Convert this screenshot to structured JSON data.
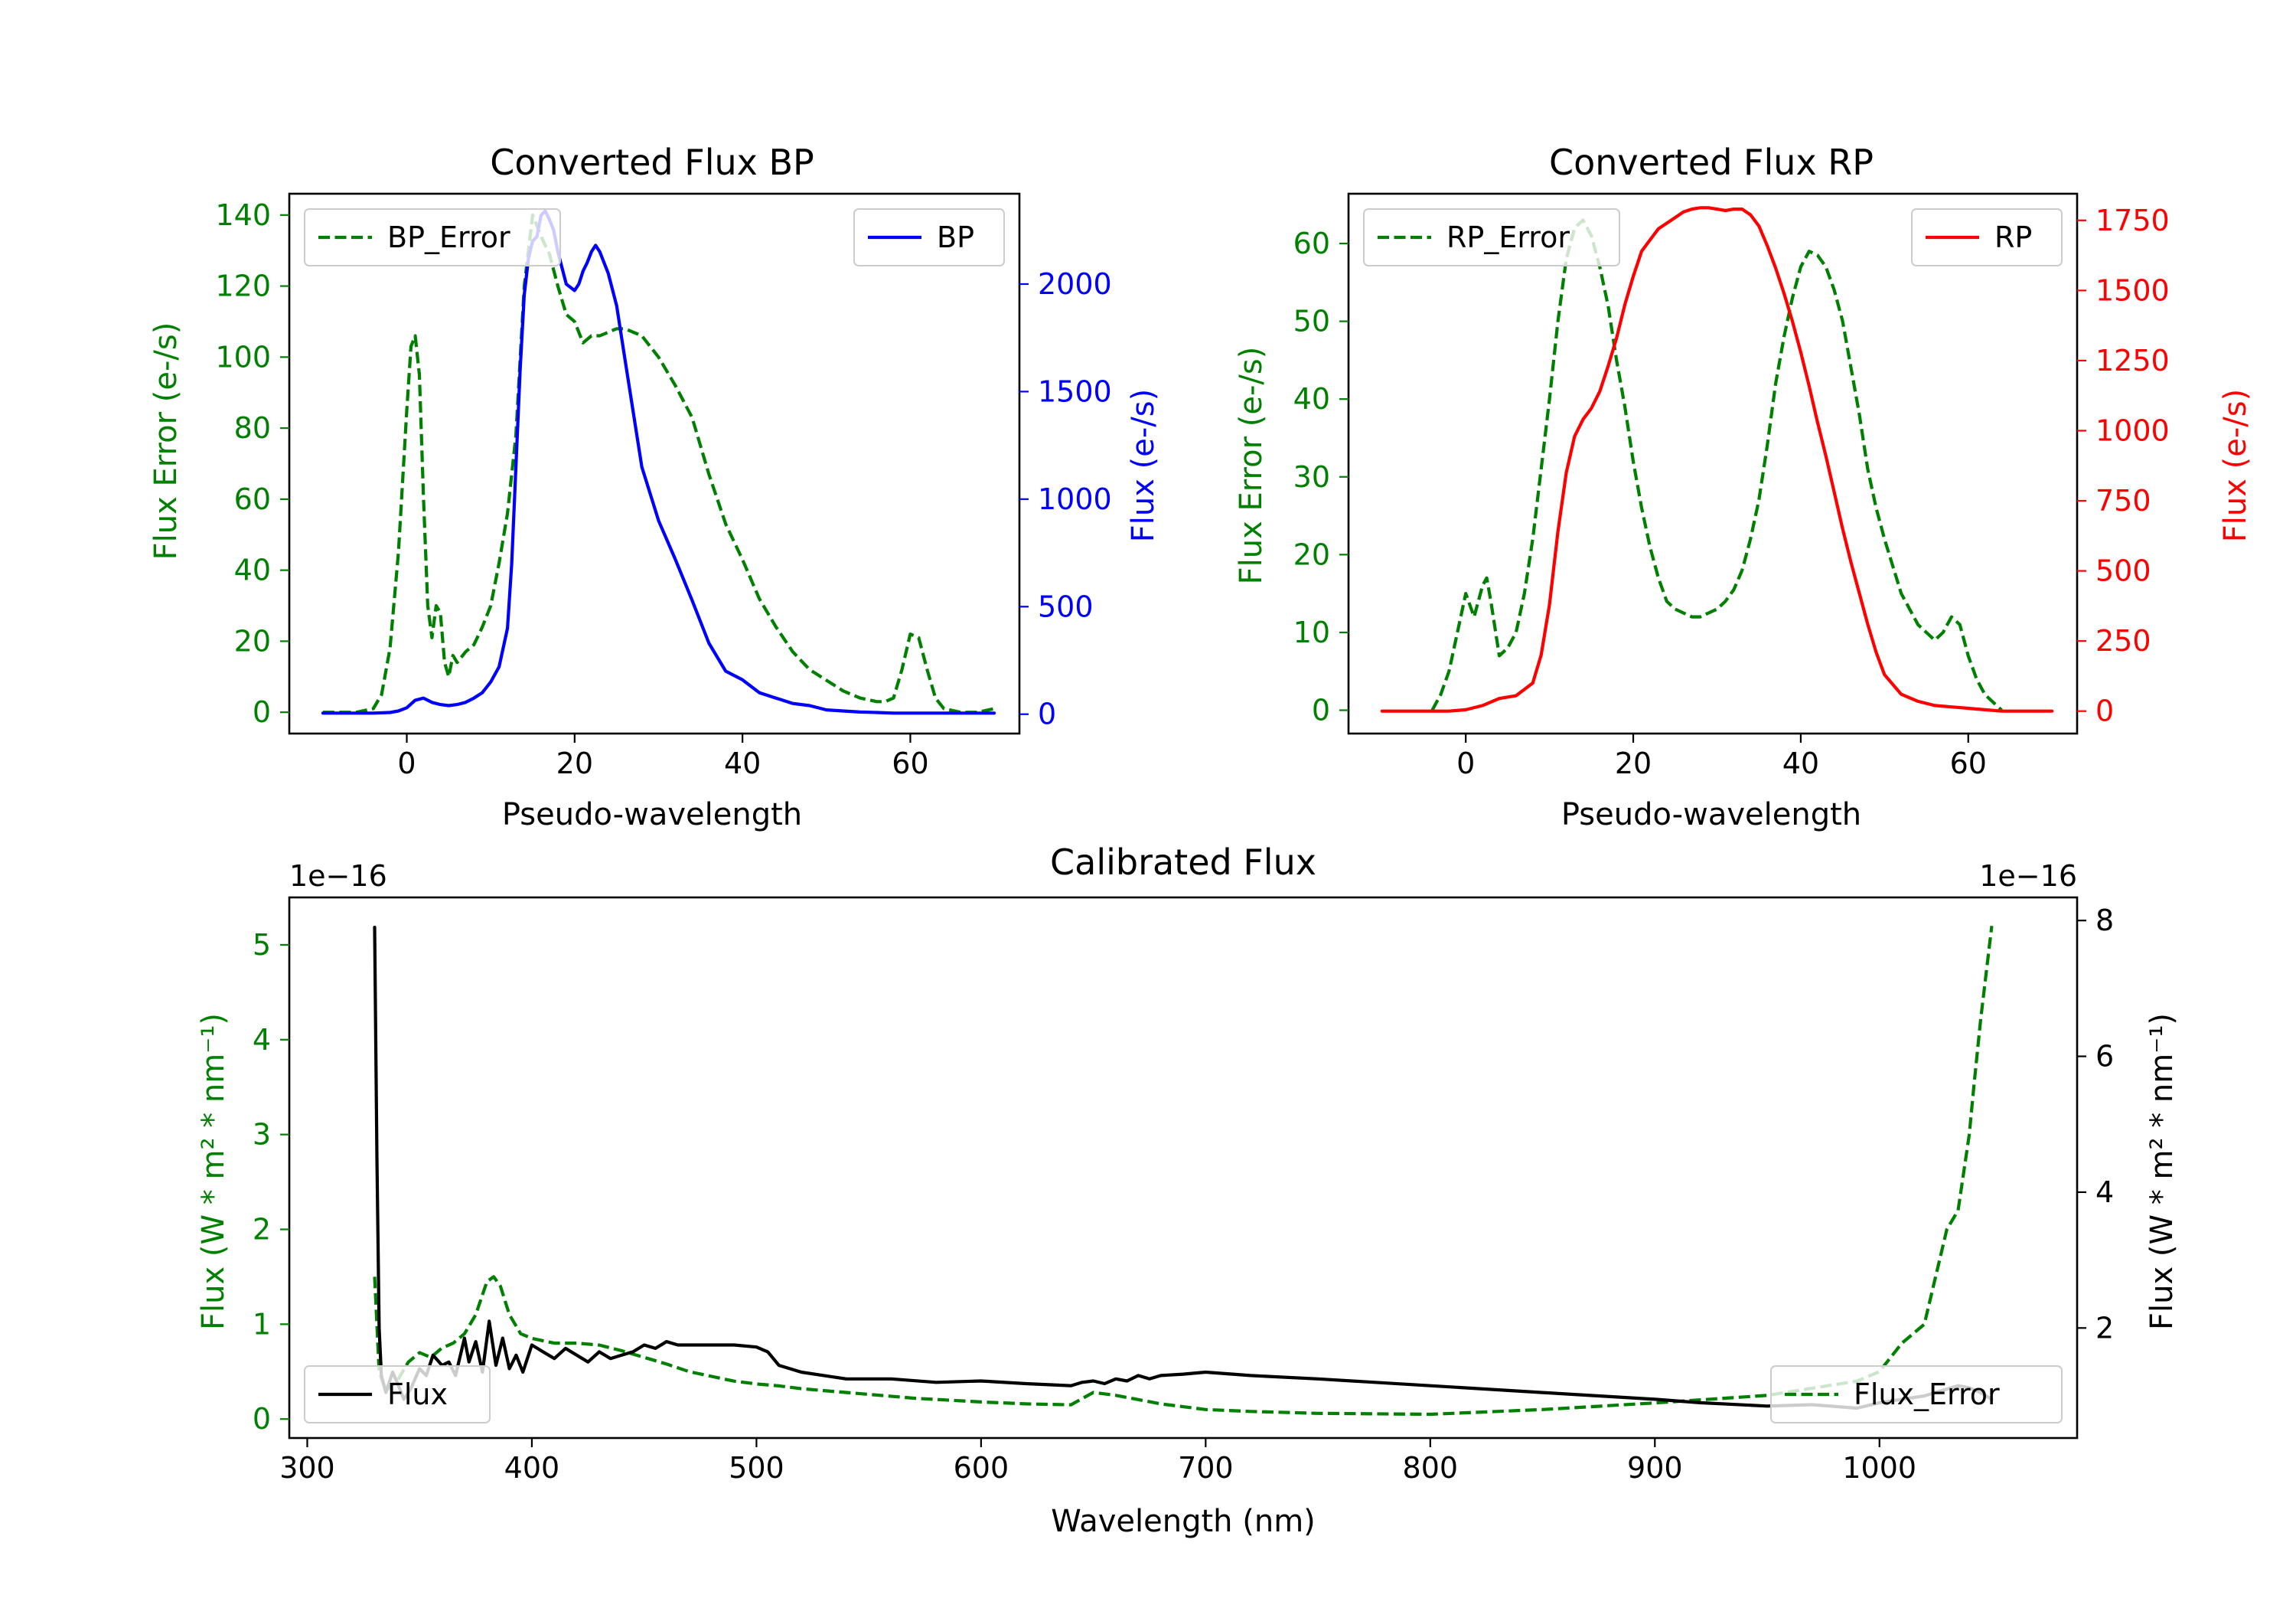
{
  "colors": {
    "error": "#008000",
    "bp": "#0000ff",
    "rp": "#ff0000",
    "flux": "#000000"
  },
  "chart_data": [
    {
      "id": "bp",
      "type": "line",
      "title": "Converted Flux BP",
      "xlabel": "Pseudo-wavelength",
      "ylabel_left": "Flux Error (e-/s)",
      "ylabel_right": "Flux (e-/s)",
      "xlim": [
        -14,
        73
      ],
      "ylim_left": [
        -6,
        146
      ],
      "ylim_right": [
        -90,
        2420
      ],
      "xticks": [
        0,
        20,
        40,
        60
      ],
      "yticks_left": [
        0,
        20,
        40,
        60,
        80,
        100,
        120,
        140
      ],
      "yticks_right": [
        0,
        500,
        1000,
        1500,
        2000
      ],
      "legend_left": {
        "label": "BP_Error",
        "position": "upper left"
      },
      "legend_right": {
        "label": "BP",
        "position": "upper right"
      },
      "series": [
        {
          "name": "BP_Error",
          "axis": "left",
          "style": "dashed",
          "color": "#008000",
          "x": [
            -10,
            -6,
            -4,
            -3,
            -2,
            -1,
            0,
            0.5,
            1,
            1.5,
            2,
            2.5,
            3,
            3.5,
            4,
            4.5,
            5,
            5.5,
            6,
            7,
            8,
            9,
            10,
            11,
            12,
            13,
            14,
            15,
            16,
            17,
            18,
            19,
            20,
            21,
            22,
            23,
            24,
            25,
            26,
            27,
            28,
            29,
            30,
            32,
            34,
            36,
            38,
            40,
            42,
            44,
            46,
            48,
            50,
            52,
            54,
            56,
            57,
            58,
            59,
            60,
            61,
            62,
            63,
            64,
            66,
            68,
            70
          ],
          "y": [
            0,
            0,
            1,
            5,
            18,
            45,
            85,
            103,
            106,
            95,
            60,
            30,
            21,
            30,
            28,
            14,
            10,
            16,
            14,
            17,
            19,
            24,
            30,
            42,
            56,
            78,
            120,
            140,
            134,
            129,
            120,
            112,
            110,
            104,
            106,
            106,
            107,
            108,
            108,
            107,
            106,
            103,
            100,
            92,
            83,
            67,
            53,
            43,
            32,
            24,
            17,
            12,
            9,
            6,
            4,
            3,
            3,
            4,
            12,
            22,
            21,
            12,
            4,
            1,
            0,
            0,
            1
          ]
        },
        {
          "name": "BP",
          "axis": "right",
          "style": "solid",
          "color": "#0000ff",
          "x": [
            -10,
            -6,
            -4,
            -2,
            -1,
            0,
            1,
            2,
            3,
            4,
            5,
            6,
            7,
            8,
            9,
            10,
            11,
            12,
            12.5,
            13,
            13.5,
            14,
            14.5,
            15,
            15.5,
            16,
            16.5,
            17,
            17.5,
            18,
            19,
            20,
            20.5,
            21,
            21.5,
            22,
            22.5,
            23,
            23.5,
            24,
            25,
            26,
            27,
            28,
            30,
            32,
            34,
            36,
            38,
            40,
            42,
            44,
            46,
            48,
            50,
            52,
            54,
            56,
            58,
            60,
            62,
            64,
            66,
            68,
            70
          ],
          "y": [
            5,
            5,
            5,
            8,
            15,
            30,
            65,
            75,
            55,
            45,
            40,
            45,
            55,
            75,
            100,
            150,
            220,
            400,
            700,
            1150,
            1600,
            1950,
            2120,
            2200,
            2220,
            2320,
            2340,
            2300,
            2250,
            2150,
            2000,
            1970,
            2000,
            2060,
            2100,
            2150,
            2180,
            2150,
            2100,
            2050,
            1900,
            1650,
            1400,
            1150,
            900,
            720,
            530,
            330,
            200,
            160,
            100,
            75,
            50,
            40,
            20,
            15,
            10,
            8,
            5,
            5,
            5,
            5,
            5,
            5,
            5
          ]
        }
      ]
    },
    {
      "id": "rp",
      "type": "line",
      "title": "Converted Flux RP",
      "xlabel": "Pseudo-wavelength",
      "ylabel_left": "Flux Error (e-/s)",
      "ylabel_right": "Flux (e-/s)",
      "xlim": [
        -14,
        73
      ],
      "ylim_left": [
        -3,
        66.4
      ],
      "ylim_right": [
        -80,
        1845
      ],
      "xticks": [
        0,
        20,
        40,
        60
      ],
      "yticks_left": [
        0,
        10,
        20,
        30,
        40,
        50,
        60
      ],
      "yticks_right": [
        0,
        250,
        500,
        750,
        1000,
        1250,
        1500,
        1750
      ],
      "legend_left": {
        "label": "RP_Error",
        "position": "upper left"
      },
      "legend_right": {
        "label": "RP",
        "position": "upper right"
      },
      "series": [
        {
          "name": "RP_Error",
          "axis": "left",
          "style": "dashed",
          "color": "#008000",
          "x": [
            -4,
            -3,
            -2,
            -1,
            0,
            1,
            2,
            2.5,
            3,
            4,
            5,
            6,
            7,
            8,
            9,
            10,
            11,
            12,
            13,
            14,
            15,
            16,
            17,
            18,
            19,
            20,
            21,
            22,
            23,
            24,
            25,
            26,
            27,
            28,
            29,
            30,
            31,
            32,
            33,
            34,
            35,
            36,
            37,
            38,
            39,
            40,
            41,
            42,
            43,
            44,
            45,
            46,
            47,
            48,
            49,
            50,
            52,
            54,
            56,
            57,
            58,
            59,
            60,
            61,
            62,
            63,
            64
          ],
          "y": [
            0,
            2,
            5,
            10,
            15,
            12,
            16,
            17,
            14,
            7,
            8,
            10,
            15,
            22,
            31,
            40,
            50,
            58,
            62,
            63,
            61,
            57,
            52,
            45,
            39,
            32,
            26,
            21,
            17,
            14,
            13,
            12.5,
            12,
            12,
            12.5,
            13,
            14,
            15.5,
            18,
            22,
            27,
            34,
            42,
            48,
            53,
            57,
            59,
            58.5,
            57,
            54,
            50,
            44,
            38,
            31,
            26,
            22,
            15,
            11,
            9,
            10,
            12,
            11,
            7,
            4,
            2,
            1,
            0
          ]
        },
        {
          "name": "RP",
          "axis": "right",
          "style": "solid",
          "color": "#ff0000",
          "x": [
            -10,
            -6,
            -4,
            -2,
            0,
            2,
            4,
            6,
            8,
            9,
            10,
            11,
            12,
            13,
            14,
            15,
            16,
            17,
            18,
            19,
            20,
            21,
            22,
            23,
            24,
            25,
            26,
            27,
            28,
            29,
            30,
            31,
            32,
            33,
            34,
            35,
            36,
            37,
            38,
            39,
            40,
            41,
            42,
            43,
            44,
            45,
            46,
            47,
            48,
            49,
            50,
            52,
            54,
            56,
            58,
            60,
            62,
            64,
            66,
            68,
            70
          ],
          "y": [
            0,
            0,
            0,
            0,
            5,
            20,
            45,
            55,
            100,
            200,
            380,
            640,
            850,
            980,
            1040,
            1080,
            1140,
            1230,
            1330,
            1450,
            1550,
            1640,
            1680,
            1720,
            1740,
            1760,
            1780,
            1790,
            1795,
            1795,
            1790,
            1785,
            1790,
            1790,
            1770,
            1730,
            1660,
            1580,
            1490,
            1390,
            1280,
            1160,
            1030,
            910,
            780,
            650,
            530,
            420,
            310,
            210,
            130,
            60,
            35,
            20,
            15,
            10,
            5,
            0,
            0,
            0,
            0
          ]
        }
      ]
    },
    {
      "id": "calibrated",
      "type": "line",
      "title": "Calibrated Flux",
      "xlabel": "Wavelength (nm)",
      "ylabel_left": "Flux (W * m² * nm⁻¹)",
      "ylabel_right": "Flux (W * m² * nm⁻¹)",
      "offset_left": "1e−16",
      "offset_right": "1e−16",
      "xlim": [
        292,
        1088
      ],
      "ylim_left": [
        -0.2,
        5.5
      ],
      "ylim_right": [
        0.38,
        8.34
      ],
      "xticks": [
        300,
        400,
        500,
        600,
        700,
        800,
        900,
        1000
      ],
      "yticks_left": [
        0,
        1,
        2,
        3,
        4,
        5
      ],
      "yticks_right": [
        2,
        4,
        6,
        8
      ],
      "legend_left": {
        "label": "Flux",
        "position": "lower left"
      },
      "legend_right": {
        "label": "Flux_Error",
        "position": "lower right"
      },
      "series": [
        {
          "name": "Flux_Error",
          "axis": "left",
          "style": "dashed",
          "color": "#008000",
          "x": [
            330,
            332,
            335,
            340,
            345,
            350,
            355,
            360,
            365,
            370,
            375,
            380,
            383,
            386,
            390,
            395,
            400,
            410,
            420,
            430,
            440,
            450,
            460,
            470,
            480,
            490,
            500,
            510,
            520,
            530,
            550,
            570,
            600,
            620,
            640,
            650,
            660,
            680,
            700,
            720,
            750,
            800,
            850,
            900,
            950,
            990,
            1000,
            1010,
            1020,
            1025,
            1030,
            1035,
            1040,
            1042,
            1045,
            1048,
            1050
          ],
          "y": [
            1.5,
            0.5,
            0.3,
            0.4,
            0.6,
            0.7,
            0.65,
            0.75,
            0.8,
            0.9,
            1.1,
            1.45,
            1.5,
            1.4,
            1.1,
            0.9,
            0.85,
            0.8,
            0.8,
            0.78,
            0.72,
            0.65,
            0.58,
            0.5,
            0.45,
            0.4,
            0.37,
            0.35,
            0.32,
            0.3,
            0.26,
            0.22,
            0.18,
            0.16,
            0.15,
            0.28,
            0.25,
            0.16,
            0.1,
            0.08,
            0.06,
            0.05,
            0.1,
            0.17,
            0.25,
            0.4,
            0.5,
            0.8,
            1.0,
            1.5,
            2.0,
            2.2,
            3.0,
            3.5,
            4.2,
            4.8,
            5.2
          ]
        },
        {
          "name": "Flux",
          "axis": "right",
          "style": "solid",
          "color": "#000000",
          "x": [
            330,
            331,
            332,
            333,
            335,
            338,
            340,
            343,
            346,
            350,
            353,
            356,
            360,
            363,
            366,
            370,
            372,
            375,
            378,
            381,
            384,
            387,
            390,
            393,
            396,
            400,
            405,
            410,
            415,
            420,
            425,
            430,
            435,
            440,
            445,
            450,
            455,
            460,
            465,
            470,
            480,
            490,
            500,
            505,
            510,
            520,
            530,
            540,
            560,
            580,
            600,
            620,
            640,
            645,
            650,
            655,
            660,
            665,
            670,
            675,
            680,
            690,
            700,
            720,
            750,
            800,
            850,
            900,
            920,
            950,
            970,
            990,
            1000,
            1010,
            1020,
            1030,
            1035,
            1040,
            1045,
            1050
          ],
          "y": [
            7.9,
            4.5,
            2.0,
            1.3,
            1.05,
            1.35,
            1.2,
            0.95,
            1.1,
            1.4,
            1.3,
            1.6,
            1.45,
            1.5,
            1.3,
            1.85,
            1.5,
            1.8,
            1.35,
            2.1,
            1.45,
            1.85,
            1.4,
            1.6,
            1.35,
            1.75,
            1.65,
            1.55,
            1.7,
            1.6,
            1.5,
            1.65,
            1.55,
            1.6,
            1.65,
            1.75,
            1.7,
            1.8,
            1.75,
            1.75,
            1.75,
            1.75,
            1.72,
            1.65,
            1.45,
            1.35,
            1.3,
            1.25,
            1.25,
            1.2,
            1.22,
            1.18,
            1.15,
            1.2,
            1.22,
            1.18,
            1.25,
            1.22,
            1.3,
            1.25,
            1.3,
            1.32,
            1.35,
            1.3,
            1.25,
            1.15,
            1.05,
            0.95,
            0.9,
            0.85,
            0.87,
            0.82,
            0.9,
            0.95,
            1.0,
            1.1,
            1.15,
            1.12,
            1.05,
            0.95
          ]
        }
      ]
    }
  ]
}
